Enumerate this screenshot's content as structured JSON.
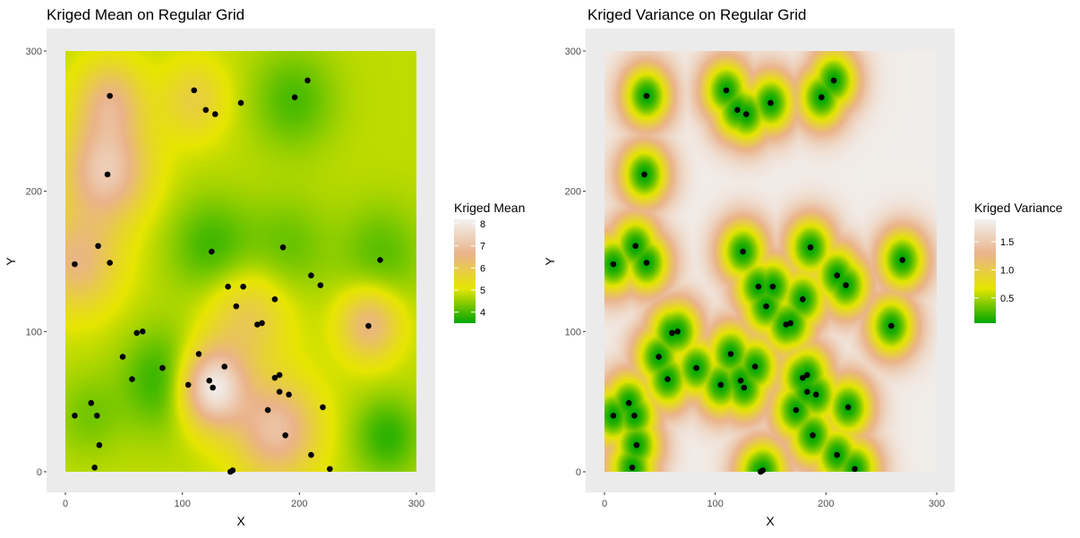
{
  "chart_data": [
    {
      "type": "heatmap",
      "title": "Kriged Mean on Regular Grid",
      "xlabel": "X",
      "ylabel": "Y",
      "xlim": [
        0,
        300
      ],
      "ylim": [
        0,
        300
      ],
      "xticks": [
        "0",
        "100",
        "200",
        "300"
      ],
      "yticks": [
        "0",
        "100",
        "200",
        "300"
      ],
      "grid": true,
      "legend": {
        "title": "Kriged Mean",
        "placement": "right",
        "range": [
          3.5,
          8.2
        ],
        "ticks": [
          4,
          5,
          6,
          7,
          8
        ],
        "tick_labels": [
          "4",
          "5",
          "6",
          "7",
          "8"
        ],
        "colors": [
          "#00a600",
          "#e6e600",
          "#eab38a",
          "#f2f2f2"
        ]
      },
      "background_value": 4.8,
      "surface_features": [
        {
          "x": 35,
          "y": 215,
          "value": 7.2,
          "spread": 25
        },
        {
          "x": 38,
          "y": 265,
          "value": 6.4,
          "spread": 20
        },
        {
          "x": 10,
          "y": 150,
          "value": 6.5,
          "spread": 25
        },
        {
          "x": 125,
          "y": 60,
          "value": 8.1,
          "spread": 20
        },
        {
          "x": 180,
          "y": 30,
          "value": 7.0,
          "spread": 25
        },
        {
          "x": 155,
          "y": 110,
          "value": 6.0,
          "spread": 25
        },
        {
          "x": 260,
          "y": 105,
          "value": 6.6,
          "spread": 18
        },
        {
          "x": 110,
          "y": 265,
          "value": 5.8,
          "spread": 20
        },
        {
          "x": 85,
          "y": 65,
          "value": 3.7,
          "spread": 25
        },
        {
          "x": 125,
          "y": 160,
          "value": 3.9,
          "spread": 25
        },
        {
          "x": 195,
          "y": 265,
          "value": 4.0,
          "spread": 25
        },
        {
          "x": 275,
          "y": 25,
          "value": 3.8,
          "spread": 20
        },
        {
          "x": 270,
          "y": 155,
          "value": 4.1,
          "spread": 25
        },
        {
          "x": 190,
          "y": 160,
          "value": 4.2,
          "spread": 25
        },
        {
          "x": 20,
          "y": 40,
          "value": 4.3,
          "spread": 20
        }
      ],
      "points": [
        {
          "x": 38,
          "y": 268
        },
        {
          "x": 110,
          "y": 272
        },
        {
          "x": 120,
          "y": 258
        },
        {
          "x": 128,
          "y": 255
        },
        {
          "x": 150,
          "y": 263
        },
        {
          "x": 196,
          "y": 267
        },
        {
          "x": 207,
          "y": 279
        },
        {
          "x": 36,
          "y": 212
        },
        {
          "x": 8,
          "y": 148
        },
        {
          "x": 28,
          "y": 161
        },
        {
          "x": 38,
          "y": 149
        },
        {
          "x": 125,
          "y": 157
        },
        {
          "x": 186,
          "y": 160
        },
        {
          "x": 210,
          "y": 140
        },
        {
          "x": 218,
          "y": 133
        },
        {
          "x": 269,
          "y": 151
        },
        {
          "x": 139,
          "y": 132
        },
        {
          "x": 152,
          "y": 132
        },
        {
          "x": 146,
          "y": 118
        },
        {
          "x": 179,
          "y": 123
        },
        {
          "x": 164,
          "y": 105
        },
        {
          "x": 168,
          "y": 106
        },
        {
          "x": 259,
          "y": 104
        },
        {
          "x": 61,
          "y": 99
        },
        {
          "x": 66,
          "y": 100
        },
        {
          "x": 49,
          "y": 82
        },
        {
          "x": 57,
          "y": 66
        },
        {
          "x": 83,
          "y": 74
        },
        {
          "x": 114,
          "y": 84
        },
        {
          "x": 136,
          "y": 75
        },
        {
          "x": 105,
          "y": 62
        },
        {
          "x": 123,
          "y": 65
        },
        {
          "x": 126,
          "y": 60
        },
        {
          "x": 179,
          "y": 67
        },
        {
          "x": 183,
          "y": 69
        },
        {
          "x": 183,
          "y": 57
        },
        {
          "x": 191,
          "y": 55
        },
        {
          "x": 173,
          "y": 44
        },
        {
          "x": 220,
          "y": 46
        },
        {
          "x": 188,
          "y": 26
        },
        {
          "x": 22,
          "y": 49
        },
        {
          "x": 8,
          "y": 40
        },
        {
          "x": 27,
          "y": 40
        },
        {
          "x": 29,
          "y": 19
        },
        {
          "x": 210,
          "y": 12
        },
        {
          "x": 25,
          "y": 3
        },
        {
          "x": 226,
          "y": 2
        },
        {
          "x": 143,
          "y": 1
        },
        {
          "x": 141,
          "y": 0
        }
      ]
    },
    {
      "type": "heatmap",
      "title": "Kriged Variance on Regular Grid",
      "xlabel": "X",
      "ylabel": "Y",
      "xlim": [
        0,
        300
      ],
      "ylim": [
        0,
        300
      ],
      "xticks": [
        "0",
        "100",
        "200",
        "300"
      ],
      "yticks": [
        "0",
        "100",
        "200",
        "300"
      ],
      "grid": true,
      "legend": {
        "title": "Kriged Variance",
        "placement": "right",
        "range": [
          0.05,
          1.9
        ],
        "ticks": [
          0.5,
          1.0,
          1.5
        ],
        "tick_labels": [
          "0.5",
          "1.0",
          "1.5"
        ],
        "colors": [
          "#00a600",
          "#e6e600",
          "#eab38a",
          "#f2f2f2"
        ]
      },
      "sill": 1.85,
      "nugget": 0.05,
      "range_of_influence": 24,
      "points": [
        {
          "x": 38,
          "y": 268
        },
        {
          "x": 110,
          "y": 272
        },
        {
          "x": 120,
          "y": 258
        },
        {
          "x": 128,
          "y": 255
        },
        {
          "x": 150,
          "y": 263
        },
        {
          "x": 196,
          "y": 267
        },
        {
          "x": 207,
          "y": 279
        },
        {
          "x": 36,
          "y": 212
        },
        {
          "x": 8,
          "y": 148
        },
        {
          "x": 28,
          "y": 161
        },
        {
          "x": 38,
          "y": 149
        },
        {
          "x": 125,
          "y": 157
        },
        {
          "x": 186,
          "y": 160
        },
        {
          "x": 210,
          "y": 140
        },
        {
          "x": 218,
          "y": 133
        },
        {
          "x": 269,
          "y": 151
        },
        {
          "x": 139,
          "y": 132
        },
        {
          "x": 152,
          "y": 132
        },
        {
          "x": 146,
          "y": 118
        },
        {
          "x": 179,
          "y": 123
        },
        {
          "x": 164,
          "y": 105
        },
        {
          "x": 168,
          "y": 106
        },
        {
          "x": 259,
          "y": 104
        },
        {
          "x": 61,
          "y": 99
        },
        {
          "x": 66,
          "y": 100
        },
        {
          "x": 49,
          "y": 82
        },
        {
          "x": 57,
          "y": 66
        },
        {
          "x": 83,
          "y": 74
        },
        {
          "x": 114,
          "y": 84
        },
        {
          "x": 136,
          "y": 75
        },
        {
          "x": 105,
          "y": 62
        },
        {
          "x": 123,
          "y": 65
        },
        {
          "x": 126,
          "y": 60
        },
        {
          "x": 179,
          "y": 67
        },
        {
          "x": 183,
          "y": 69
        },
        {
          "x": 183,
          "y": 57
        },
        {
          "x": 191,
          "y": 55
        },
        {
          "x": 173,
          "y": 44
        },
        {
          "x": 220,
          "y": 46
        },
        {
          "x": 188,
          "y": 26
        },
        {
          "x": 22,
          "y": 49
        },
        {
          "x": 8,
          "y": 40
        },
        {
          "x": 27,
          "y": 40
        },
        {
          "x": 29,
          "y": 19
        },
        {
          "x": 210,
          "y": 12
        },
        {
          "x": 25,
          "y": 3
        },
        {
          "x": 226,
          "y": 2
        },
        {
          "x": 143,
          "y": 1
        },
        {
          "x": 141,
          "y": 0
        }
      ]
    }
  ]
}
